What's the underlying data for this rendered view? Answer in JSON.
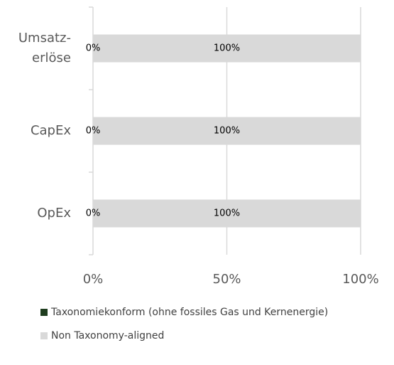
{
  "chart_data": {
    "type": "stacked-bar-horizontal",
    "categories": [
      "Umsatz-\nerlöse",
      "CapEx",
      "OpEx"
    ],
    "series": [
      {
        "name": "Taxonomiekonform (ohne fossiles Gas und Kernenergie)",
        "color": "#1e3d1e",
        "values": [
          0,
          0,
          0
        ],
        "value_labels": [
          "0%",
          "0%",
          "0%"
        ]
      },
      {
        "name": "Non Taxonomy-aligned",
        "color": "#d9d9d9",
        "values": [
          100,
          100,
          100
        ],
        "value_labels": [
          "100%",
          "100%",
          "100%"
        ]
      }
    ],
    "xlim": [
      0,
      100
    ],
    "xticks": [
      {
        "value": 0,
        "label": "0%"
      },
      {
        "value": 50,
        "label": "50%"
      },
      {
        "value": 100,
        "label": "100%"
      }
    ],
    "grid": true,
    "legend": "bottom"
  }
}
